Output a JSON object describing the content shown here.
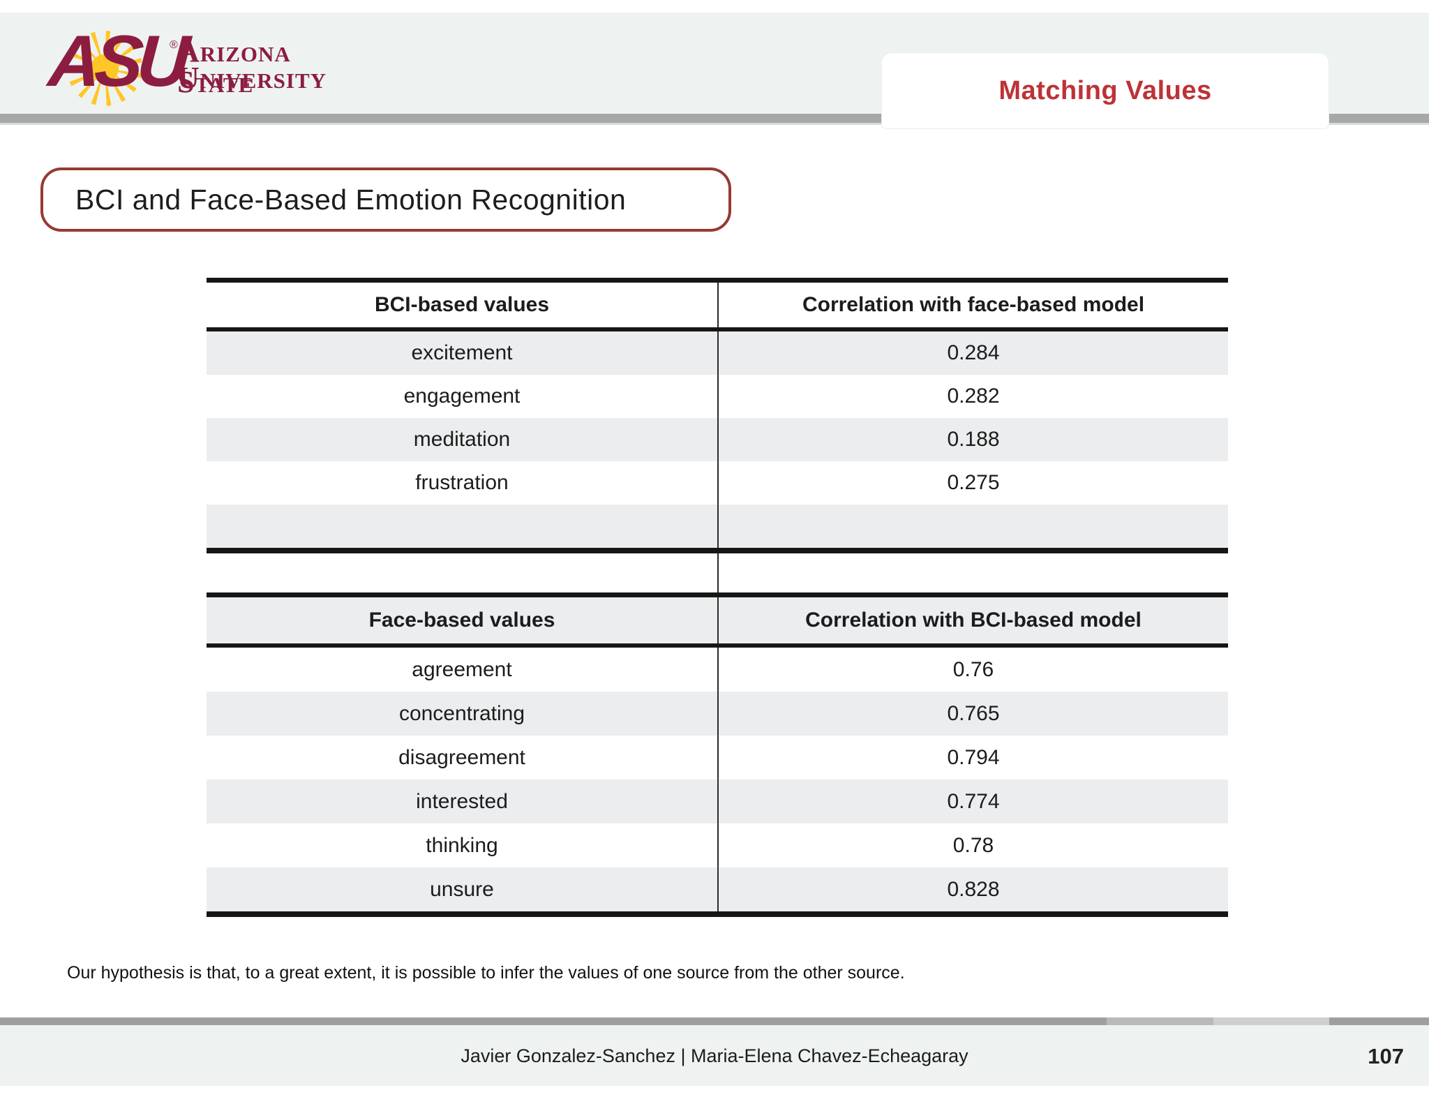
{
  "header": {
    "tab_title": "Matching Values"
  },
  "logo": {
    "acronym": "ASU",
    "registered": "®",
    "line1": "Arizona State",
    "line2": "University"
  },
  "slide": {
    "title": "BCI and Face-Based Emotion Recognition",
    "hypothesis": "Our hypothesis is that, to a great extent, it is possible to infer the values of one source from the other source."
  },
  "tables": [
    {
      "headers": [
        "BCI-based values",
        "Correlation with face-based model"
      ],
      "rows": [
        [
          "excitement",
          "0.284"
        ],
        [
          "engagement",
          "0.282"
        ],
        [
          "meditation",
          "0.188"
        ],
        [
          "frustration",
          "0.275"
        ],
        [
          "",
          ""
        ]
      ]
    },
    {
      "headers": [
        "Face-based values",
        "Correlation with BCI-based model"
      ],
      "rows": [
        [
          "agreement",
          "0.76"
        ],
        [
          "concentrating",
          "0.765"
        ],
        [
          "disagreement",
          "0.794"
        ],
        [
          "interested",
          "0.774"
        ],
        [
          "thinking",
          "0.78"
        ],
        [
          "unsure",
          "0.828"
        ]
      ]
    }
  ],
  "footer": {
    "authors": "Javier Gonzalez-Sanchez | Maria-Elena Chavez-Echeagaray",
    "page": "107"
  },
  "colors": {
    "asu_maroon": "#8C1D40",
    "asu_gold": "#FFC627",
    "heading_red": "#BD3237",
    "title_border": "#963A31",
    "row_stripe": "#EBEDEE",
    "band_bg": "#EEF3F1",
    "bar_gray": "#9F9F9F"
  }
}
